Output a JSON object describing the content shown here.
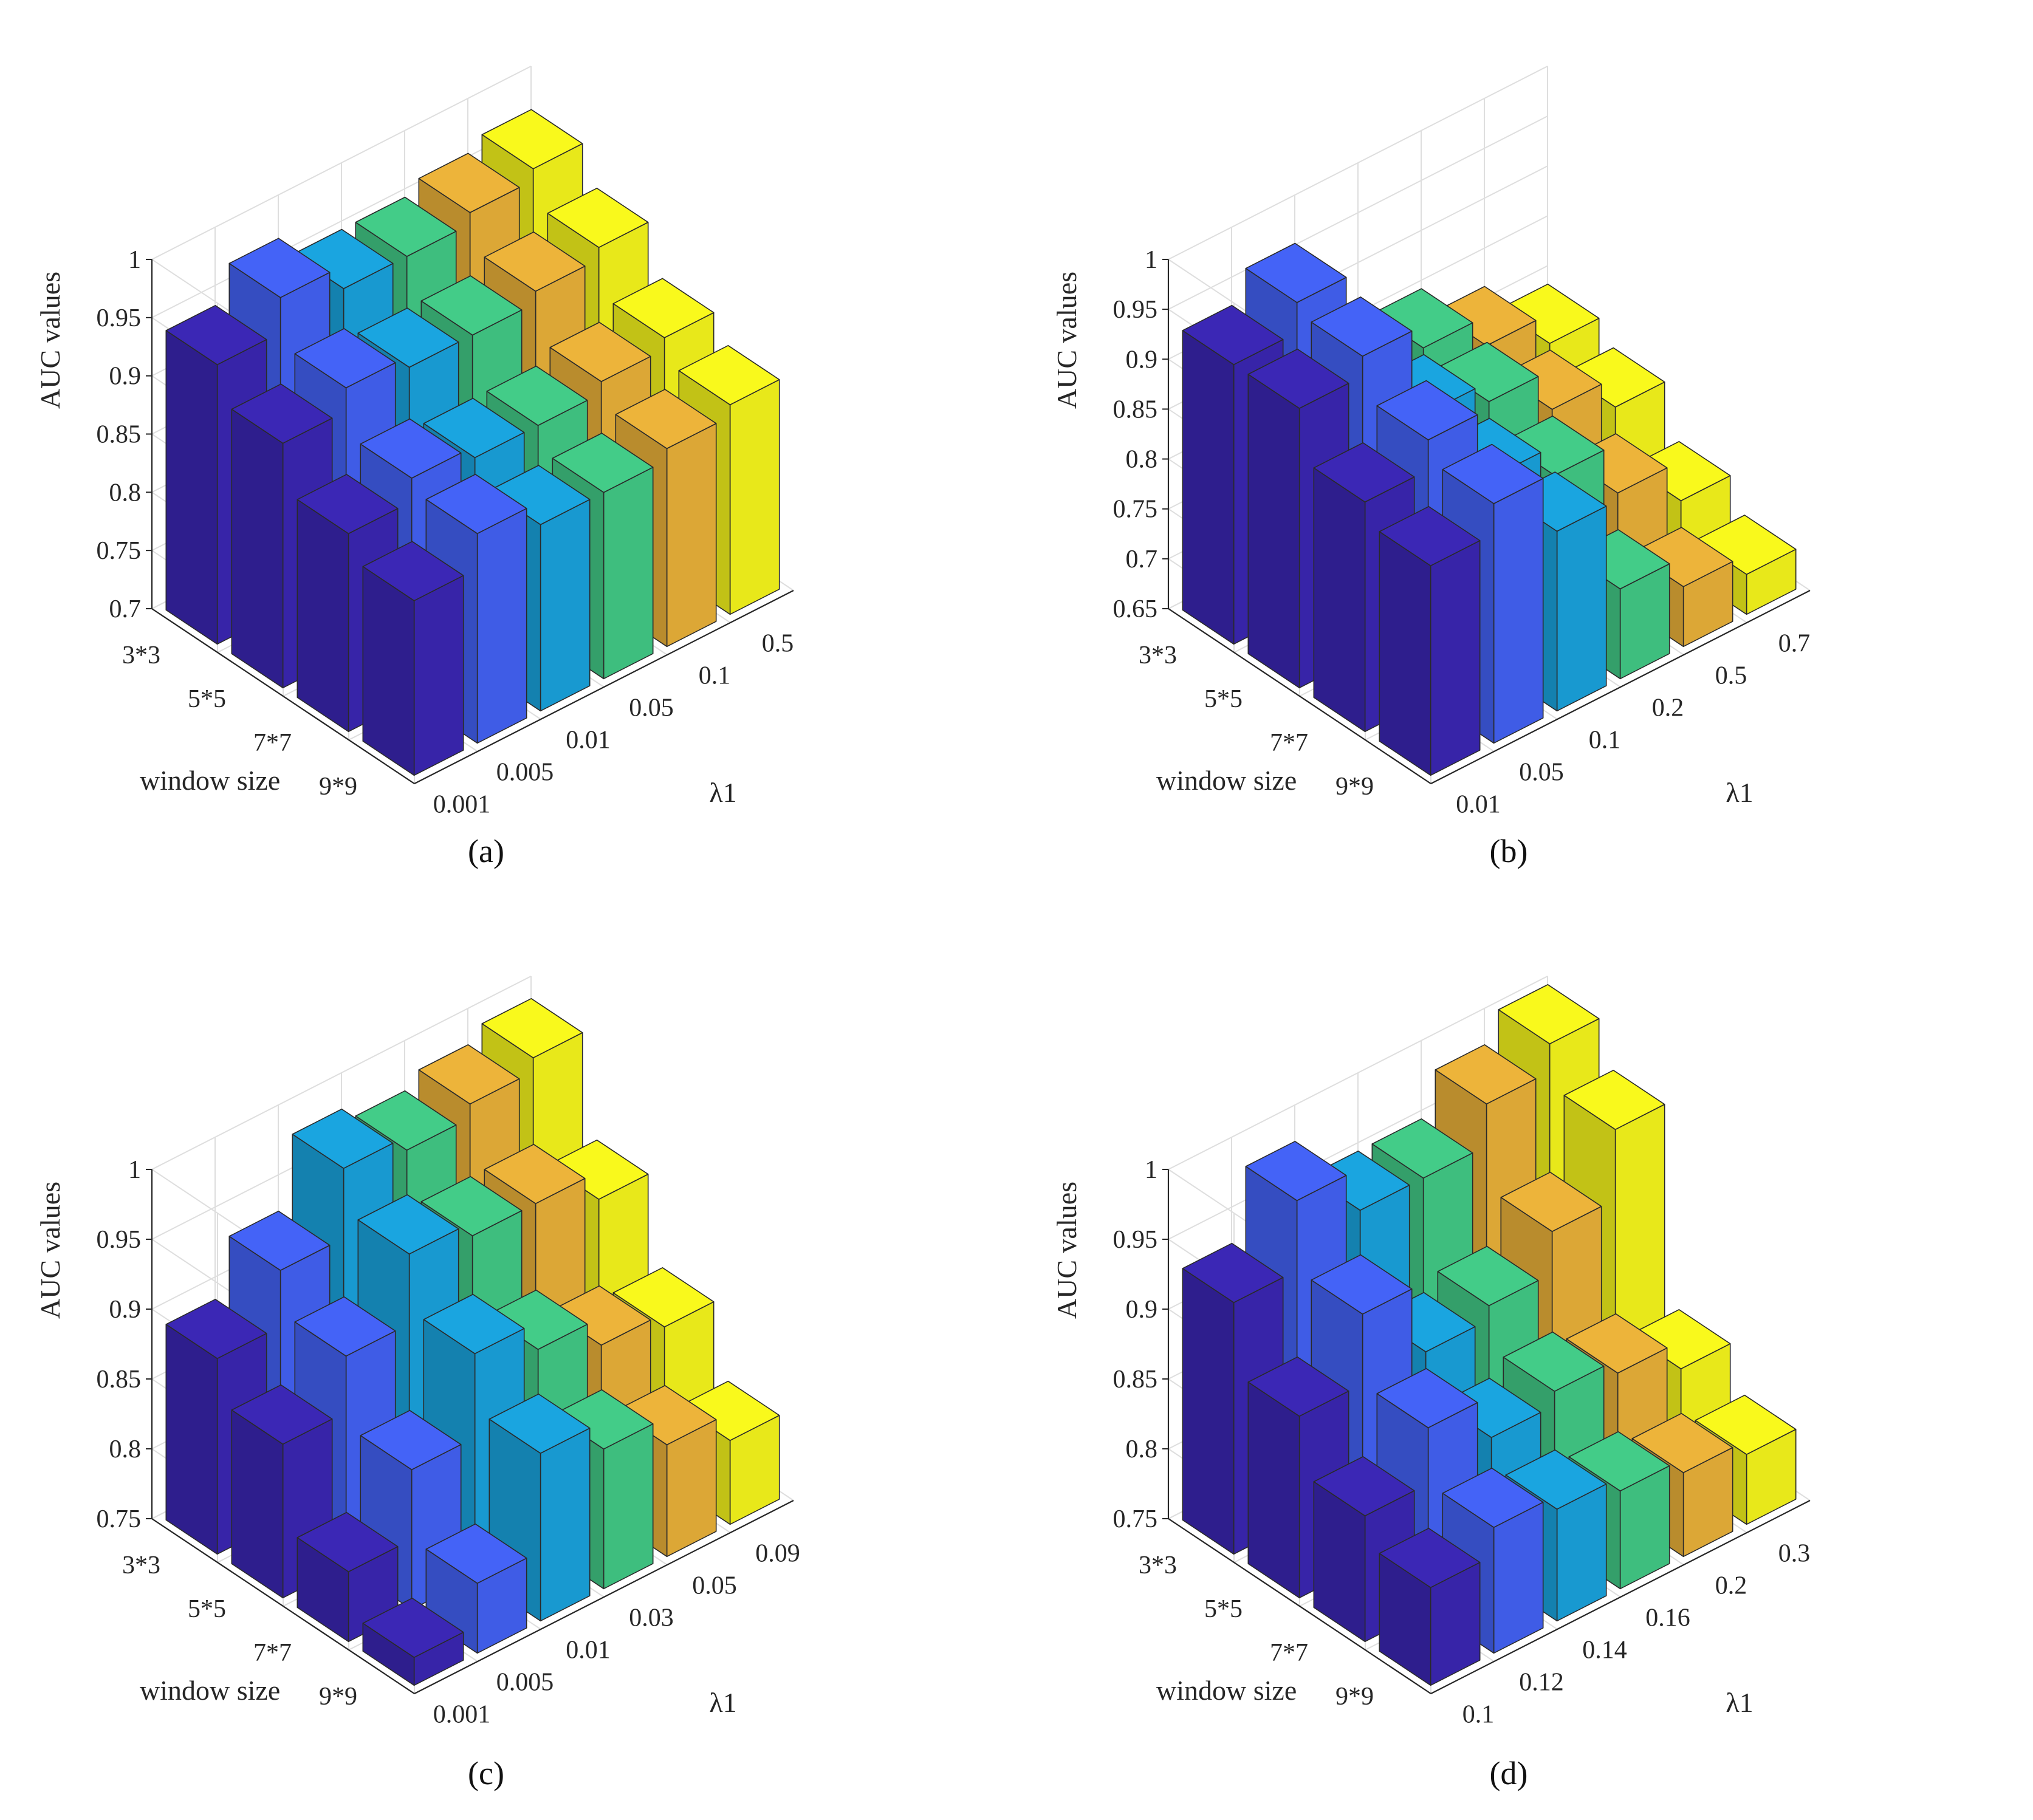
{
  "chart_data": [
    {
      "type": "bar3d",
      "caption": "(a)",
      "zlabel": "AUC values",
      "xlabel": "λ1",
      "ylabel": "window size",
      "zlim": [
        0.7,
        1.0
      ],
      "zticks": [
        "0.7",
        "0.75",
        "0.8",
        "0.85",
        "0.9",
        "0.95",
        "1"
      ],
      "lambda_ticks": [
        "0.001",
        "0.005",
        "0.01",
        "0.05",
        "0.1",
        "0.5"
      ],
      "window_ticks": [
        "3*3",
        "5*5",
        "7*7",
        "9*9"
      ],
      "values": [
        [
          0.94,
          0.97,
          0.95,
          0.95,
          0.96,
          0.97
        ],
        [
          0.91,
          0.93,
          0.92,
          0.92,
          0.93,
          0.94
        ],
        [
          0.87,
          0.89,
          0.88,
          0.88,
          0.89,
          0.9
        ],
        [
          0.85,
          0.88,
          0.86,
          0.86,
          0.87,
          0.88
        ]
      ]
    },
    {
      "type": "bar3d",
      "caption": "(b)",
      "zlabel": "AUC values",
      "xlabel": "λ1",
      "ylabel": "window size",
      "zlim": [
        0.65,
        1.0
      ],
      "zticks": [
        "0.65",
        "0.7",
        "0.75",
        "0.8",
        "0.85",
        "0.9",
        "0.95",
        "1"
      ],
      "lambda_ticks": [
        "0.01",
        "0.05",
        "0.1",
        "0.2",
        "0.5",
        "0.7"
      ],
      "window_ticks": [
        "3*3",
        "5*5",
        "7*7",
        "9*9"
      ],
      "values": [
        [
          0.93,
          0.96,
          0.86,
          0.85,
          0.82,
          0.79
        ],
        [
          0.93,
          0.95,
          0.86,
          0.84,
          0.8,
          0.77
        ],
        [
          0.88,
          0.91,
          0.84,
          0.81,
          0.76,
          0.72
        ],
        [
          0.86,
          0.89,
          0.83,
          0.74,
          0.71,
          0.69
        ]
      ]
    },
    {
      "type": "bar3d",
      "caption": "(c)",
      "zlabel": "AUC values",
      "xlabel": "λ1",
      "ylabel": "window size",
      "zlim": [
        0.75,
        1.0
      ],
      "zticks": [
        "0.75",
        "0.8",
        "0.85",
        "0.9",
        "0.95",
        "1"
      ],
      "lambda_ticks": [
        "0.001",
        "0.005",
        "0.01",
        "0.03",
        "0.05",
        "0.09"
      ],
      "window_ticks": [
        "3*3",
        "5*5",
        "7*7",
        "9*9"
      ],
      "values": [
        [
          0.89,
          0.93,
          0.98,
          0.97,
          0.98,
          0.99
        ],
        [
          0.86,
          0.9,
          0.95,
          0.94,
          0.94,
          0.92
        ],
        [
          0.8,
          0.85,
          0.91,
          0.89,
          0.87,
          0.86
        ],
        [
          0.77,
          0.8,
          0.87,
          0.85,
          0.83,
          0.81
        ]
      ]
    },
    {
      "type": "bar3d",
      "caption": "(d)",
      "zlabel": "AUC values",
      "xlabel": "λ1",
      "ylabel": "window size",
      "zlim": [
        0.75,
        1.0
      ],
      "zticks": [
        "0.75",
        "0.8",
        "0.85",
        "0.9",
        "0.95",
        "1"
      ],
      "lambda_ticks": [
        "0.1",
        "0.12",
        "0.14",
        "0.16",
        "0.2",
        "0.3"
      ],
      "window_ticks": [
        "3*3",
        "5*5",
        "7*7",
        "9*9"
      ],
      "values": [
        [
          0.93,
          0.98,
          0.95,
          0.95,
          0.98,
          1.0
        ],
        [
          0.88,
          0.93,
          0.88,
          0.89,
          0.92,
          0.97
        ],
        [
          0.84,
          0.88,
          0.85,
          0.86,
          0.85,
          0.83
        ],
        [
          0.82,
          0.84,
          0.83,
          0.82,
          0.81,
          0.8
        ]
      ]
    }
  ],
  "colors": {
    "series": [
      "#3b27b5",
      "#4463f7",
      "#1aa5e0",
      "#43cc88",
      "#edb43a",
      "#f9f91c"
    ],
    "edge": "#2a2a2a",
    "grid": "#dedede",
    "axis": "#262626"
  }
}
